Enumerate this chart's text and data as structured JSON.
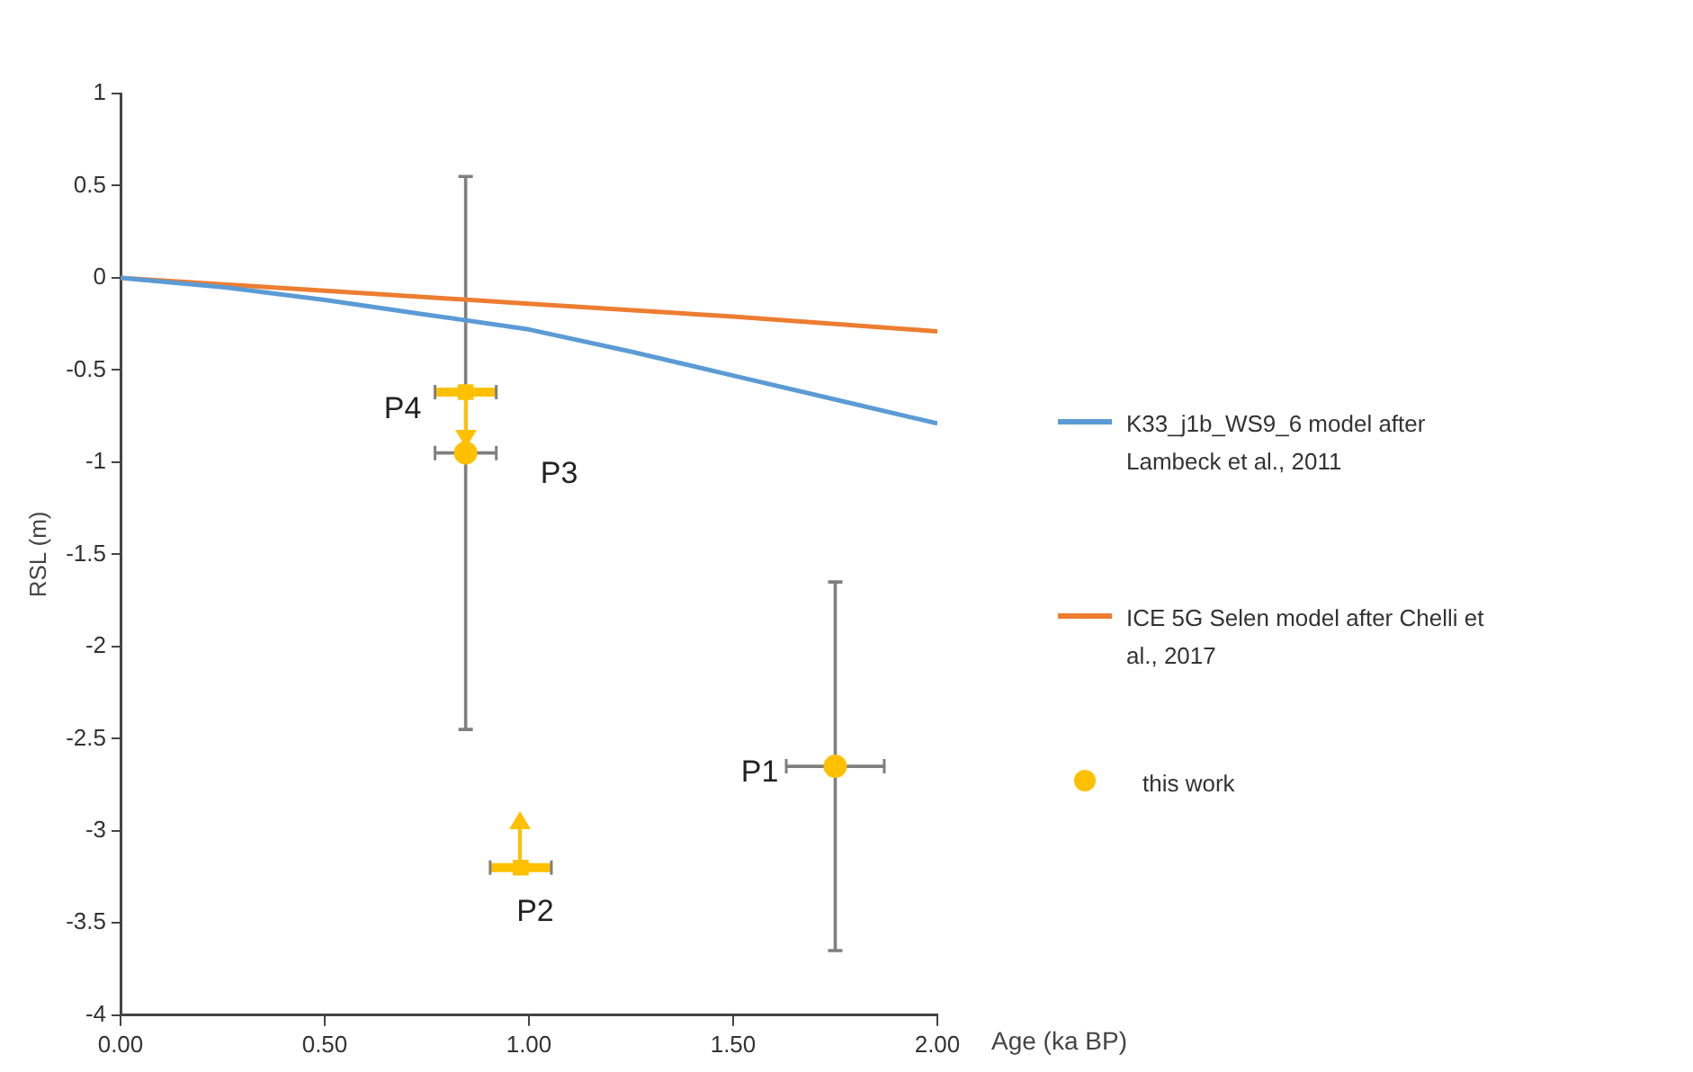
{
  "chart_data": {
    "type": "scatter",
    "xlabel": "Age (ka BP)",
    "ylabel": "RSL (m)",
    "xlim": [
      0,
      2
    ],
    "xticks": [
      {
        "value": 0,
        "label": "0.00"
      },
      {
        "value": 0.5,
        "label": "0.50"
      },
      {
        "value": 1,
        "label": "1.00"
      },
      {
        "value": 1.5,
        "label": "1.50"
      },
      {
        "value": 2,
        "label": "2.00"
      }
    ],
    "ylim": [
      -4,
      1
    ],
    "yticks": [
      -4,
      -3.5,
      -3,
      -2.5,
      -2,
      -1.5,
      -1,
      -0.5,
      0,
      0.5,
      1
    ],
    "grid": false,
    "legend": "right",
    "series": [
      {
        "name": "K33_j1b_WS9_6 model after Lambeck et al., 2011",
        "type": "line",
        "color": "#5b9bd5",
        "marker": "none",
        "x": [
          0,
          0.25,
          0.5,
          0.75,
          1,
          1.25,
          1.5,
          1.75,
          2
        ],
        "values": [
          0,
          -0.05,
          -0.12,
          -0.2,
          -0.28,
          -0.4,
          -0.53,
          -0.66,
          -0.79
        ]
      },
      {
        "name": "ICE 5G Selen model after Chelli et al., 2017",
        "type": "line",
        "color": "#ed7d31",
        "marker": "none",
        "x": [
          0,
          0.5,
          1,
          1.5,
          2
        ],
        "values": [
          0,
          -0.07,
          -0.14,
          -0.21,
          -0.29
        ]
      },
      {
        "name": "this work",
        "type": "scatter",
        "color": "#ffc000",
        "marker": "circle",
        "x": [
          1.75,
          0.845
        ],
        "values": [
          -2.65,
          -0.95
        ],
        "errors": [
          1,
          1.5
        ],
        "xerrors": [
          0.12,
          0.075
        ]
      },
      {
        "type": "scatter",
        "color": "#ffc000",
        "marker": "square",
        "x": [
          0.845,
          0.98
        ],
        "values": [
          -0.62,
          -3.2
        ],
        "xerrors": [
          0.075,
          0.075
        ]
      }
    ],
    "annotations": [
      {
        "text": "P1",
        "x": 1.75,
        "y": -2.65
      },
      {
        "text": "P2",
        "x": 0.98,
        "y": -3.2
      },
      {
        "text": "P3",
        "x": 0.845,
        "y": -0.95
      },
      {
        "text": "P4",
        "x": 0.845,
        "y": -0.62
      }
    ]
  }
}
